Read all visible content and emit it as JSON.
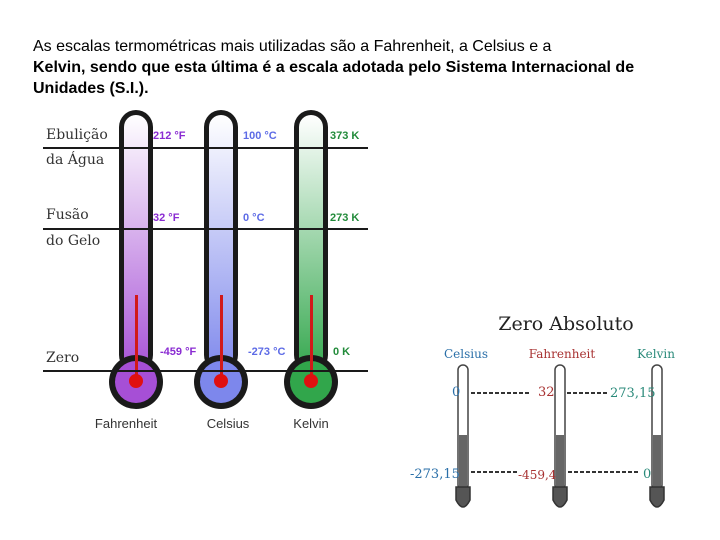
{
  "intro": {
    "line_normal": "As escalas termométricas mais utilizadas são a Fahrenheit, a Celsius e a",
    "line_bold": "Kelvin, sendo que esta última é a escala adotada pelo Sistema Internacional de Unidades (S.I.)."
  },
  "figure1": {
    "row_labels": {
      "boiling_1": "Ebulição",
      "boiling_2": "da Água",
      "freezing_1": "Fusão",
      "freezing_2": "do Gelo",
      "zero": "Zero"
    },
    "thermometers": [
      {
        "name": "Fahrenheit",
        "boil": "212 °F",
        "freeze": "32 °F",
        "zero": "-459 °F",
        "color": "#a64fd6",
        "text_color": "#8a2bd2"
      },
      {
        "name": "Celsius",
        "boil": "100 °C",
        "freeze": "0 °C",
        "zero": "-273 °C",
        "color": "#7d87ec",
        "text_color": "#5d6be6"
      },
      {
        "name": "Kelvin",
        "boil": "373 K",
        "freeze": "273 K",
        "zero": "0 K",
        "color": "#31a64b",
        "text_color": "#228b3a"
      }
    ]
  },
  "figure2": {
    "title": "Zero Absoluto",
    "headers": {
      "celsius": "Celsius",
      "fahrenheit": "Fahrenheit",
      "kelvin": "Kelvin"
    },
    "top_values": {
      "celsius": "0",
      "fahrenheit": "32",
      "kelvin": "273,15"
    },
    "bottom_values": {
      "celsius": "-273,15",
      "fahrenheit": "-459,4",
      "kelvin": "0"
    },
    "colors": {
      "celsius": "#2a6fa8",
      "fahrenheit": "#a83232",
      "kelvin": "#2a8a7a"
    }
  }
}
